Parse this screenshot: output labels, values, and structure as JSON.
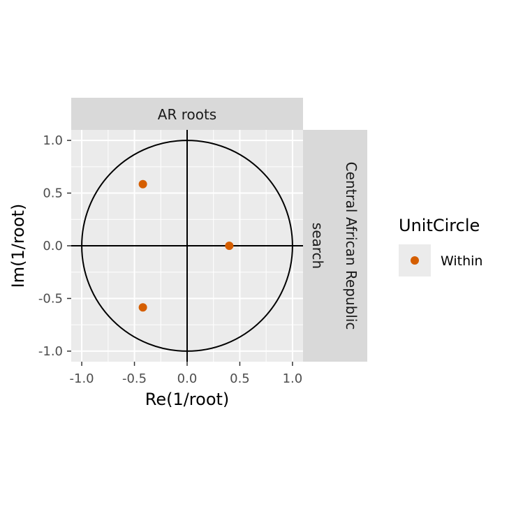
{
  "chart_data": {
    "type": "scatter",
    "facet_title": "AR roots",
    "facet_row_label": [
      "Central African Republic",
      "search"
    ],
    "xlabel": "Re(1/root)",
    "ylabel": "Im(1/root)",
    "xlim": [
      -1.1,
      1.1
    ],
    "ylim": [
      -1.1,
      1.1
    ],
    "x_ticks": [
      -1.0,
      -0.5,
      0.0,
      0.5,
      1.0
    ],
    "y_ticks": [
      -1.0,
      -0.5,
      0.0,
      0.5,
      1.0
    ],
    "x_tick_labels": [
      "-1.0",
      "-0.5",
      "0.0",
      "0.5",
      "1.0"
    ],
    "y_tick_labels": [
      "-1.0",
      "-0.5",
      "0.0",
      "0.5",
      "1.0"
    ],
    "grid": true,
    "unit_circle": true,
    "legend": {
      "title": "UnitCircle",
      "position": "right",
      "entries": [
        {
          "label": "Within",
          "color": "#D55E00"
        }
      ]
    },
    "series": [
      {
        "name": "Within",
        "color": "#D55E00",
        "points": [
          {
            "x": -0.42,
            "y": 0.585
          },
          {
            "x": 0.4,
            "y": 0.0
          },
          {
            "x": -0.42,
            "y": -0.585
          }
        ]
      }
    ]
  }
}
